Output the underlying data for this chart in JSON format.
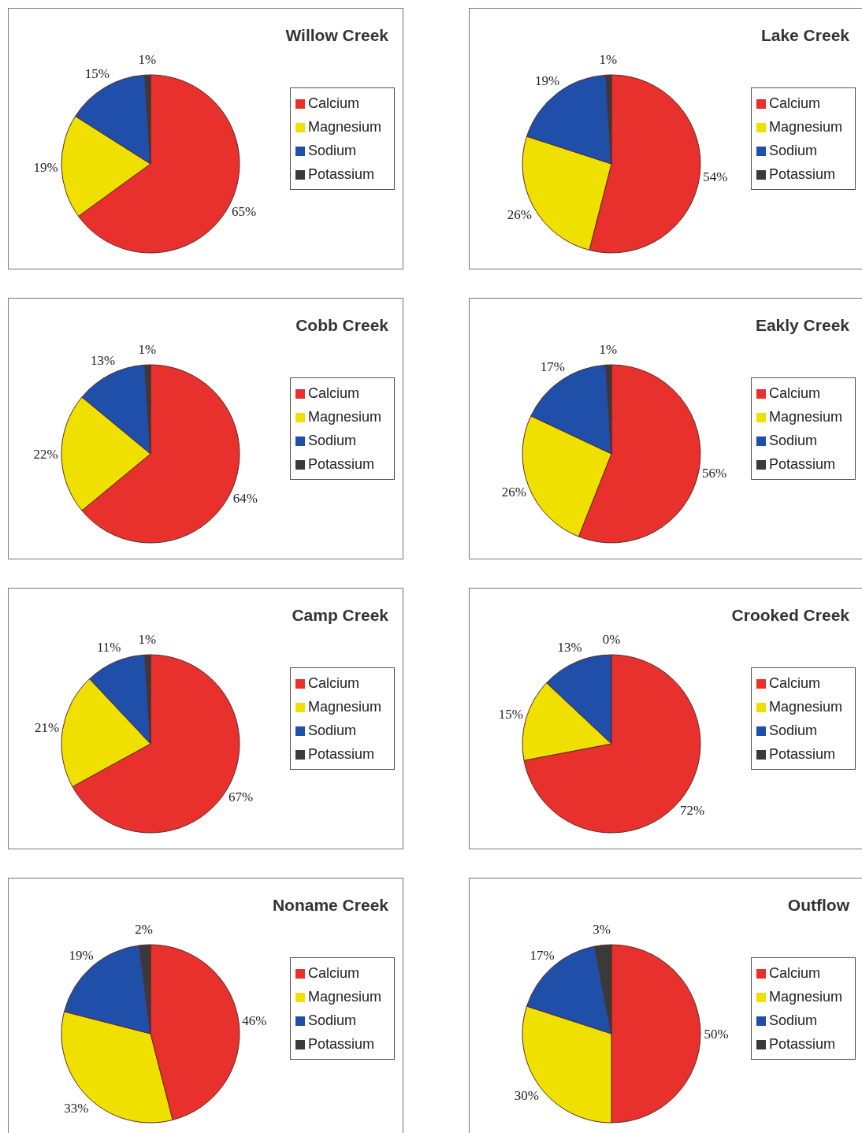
{
  "chart_data": [
    {
      "type": "pie",
      "title": "Willow Creek",
      "categories": [
        "Calcium",
        "Magnesium",
        "Sodium",
        "Potassium"
      ],
      "values": [
        65,
        19,
        15,
        1
      ],
      "value_labels": [
        "65%",
        "19%",
        "15%",
        "1%"
      ],
      "colors": [
        "#e8302c",
        "#f0e000",
        "#1f4fa8",
        "#3a3a3a"
      ],
      "legend": "right"
    },
    {
      "type": "pie",
      "title": "Lake Creek",
      "categories": [
        "Calcium",
        "Magnesium",
        "Sodium",
        "Potassium"
      ],
      "values": [
        54,
        26,
        19,
        1
      ],
      "value_labels": [
        "54%",
        "26%",
        "19%",
        "1%"
      ],
      "colors": [
        "#e8302c",
        "#f0e000",
        "#1f4fa8",
        "#3a3a3a"
      ],
      "legend": "right"
    },
    {
      "type": "pie",
      "title": "Cobb Creek",
      "categories": [
        "Calcium",
        "Magnesium",
        "Sodium",
        "Potassium"
      ],
      "values": [
        64,
        22,
        13,
        1
      ],
      "value_labels": [
        "64%",
        "22%",
        "13%",
        "1%"
      ],
      "colors": [
        "#e8302c",
        "#f0e000",
        "#1f4fa8",
        "#3a3a3a"
      ],
      "legend": "right"
    },
    {
      "type": "pie",
      "title": "Eakly Creek",
      "categories": [
        "Calcium",
        "Magnesium",
        "Sodium",
        "Potassium"
      ],
      "values": [
        56,
        26,
        17,
        1
      ],
      "value_labels": [
        "56%",
        "26%",
        "17%",
        "1%"
      ],
      "colors": [
        "#e8302c",
        "#f0e000",
        "#1f4fa8",
        "#3a3a3a"
      ],
      "legend": "right"
    },
    {
      "type": "pie",
      "title": "Camp Creek",
      "categories": [
        "Calcium",
        "Magnesium",
        "Sodium",
        "Potassium"
      ],
      "values": [
        67,
        21,
        11,
        1
      ],
      "value_labels": [
        "67%",
        "21%",
        "11%",
        "1%"
      ],
      "colors": [
        "#e8302c",
        "#f0e000",
        "#1f4fa8",
        "#3a3a3a"
      ],
      "legend": "right"
    },
    {
      "type": "pie",
      "title": "Crooked Creek",
      "categories": [
        "Calcium",
        "Magnesium",
        "Sodium",
        "Potassium"
      ],
      "values": [
        72,
        15,
        13,
        0
      ],
      "value_labels": [
        "72%",
        "15%",
        "13%",
        "0%"
      ],
      "colors": [
        "#e8302c",
        "#f0e000",
        "#1f4fa8",
        "#3a3a3a"
      ],
      "legend": "right"
    },
    {
      "type": "pie",
      "title": "Noname Creek",
      "categories": [
        "Calcium",
        "Magnesium",
        "Sodium",
        "Potassium"
      ],
      "values": [
        46,
        33,
        19,
        2
      ],
      "value_labels": [
        "46%",
        "33%",
        "19%",
        "2%"
      ],
      "colors": [
        "#e8302c",
        "#f0e000",
        "#1f4fa8",
        "#3a3a3a"
      ],
      "legend": "right"
    },
    {
      "type": "pie",
      "title": "Outflow",
      "categories": [
        "Calcium",
        "Magnesium",
        "Sodium",
        "Potassium"
      ],
      "values": [
        50,
        30,
        17,
        3
      ],
      "value_labels": [
        "50%",
        "30%",
        "17%",
        "3%"
      ],
      "colors": [
        "#e8302c",
        "#f0e000",
        "#1f4fa8",
        "#3a3a3a"
      ],
      "legend": "right"
    }
  ]
}
